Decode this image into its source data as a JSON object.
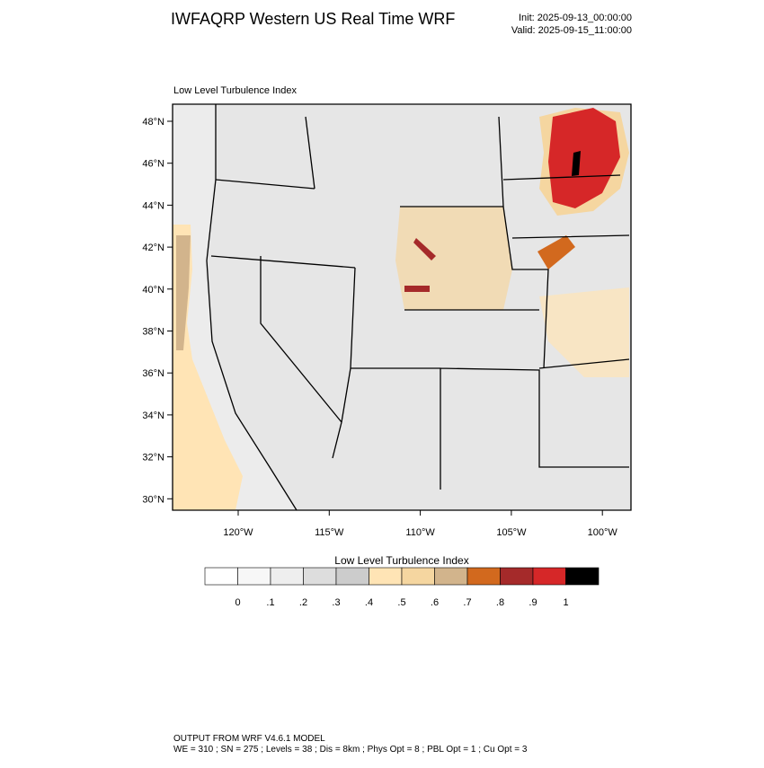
{
  "header": {
    "title": "IWFAQRP Western US Real Time WRF",
    "init": "Init: 2025-09-13_00:00:00",
    "valid": "Valid: 2025-09-15_11:00:00"
  },
  "map": {
    "label": "Low Level Turbulence Index",
    "lat_labels": [
      "48°N",
      "46°N",
      "44°N",
      "42°N",
      "40°N",
      "38°N",
      "36°N",
      "34°N",
      "32°N",
      "30°N"
    ],
    "lon_labels": [
      "120°W",
      "115°W",
      "110°W",
      "105°W",
      "100°W"
    ]
  },
  "colorbar": {
    "title": "Low Level Turbulence Index",
    "colors": [
      "#ffffff",
      "#f7f7f7",
      "#eeeeee",
      "#dddddd",
      "#cccccc",
      "#ffe4b5",
      "#f5d6a0",
      "#d2b48c",
      "#d2691e",
      "#a52a2a",
      "#d62728",
      "#000000"
    ],
    "labels": [
      "0",
      ".1",
      ".2",
      ".3",
      ".4",
      ".5",
      ".6",
      ".7",
      ".8",
      ".9",
      "1"
    ]
  },
  "footer": {
    "line1": "OUTPUT FROM WRF V4.6.1 MODEL",
    "line2": "WE = 310 ; SN = 275 ; Levels = 38 ; Dis = 8km ; Phys Opt = 8 ; PBL Opt = 1 ; Cu Opt = 3"
  }
}
